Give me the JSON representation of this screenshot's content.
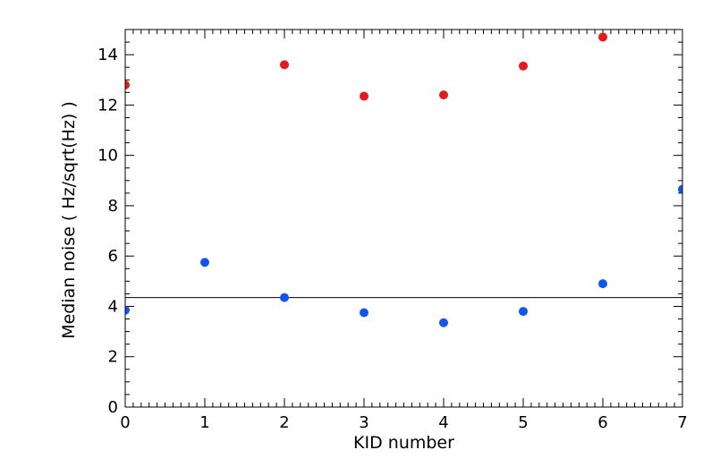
{
  "chart_data": {
    "type": "scatter",
    "title": "",
    "xlabel": "KID number",
    "ylabel": "Median noise ( Hz/sqrt(Hz) )",
    "xlim": [
      0,
      7
    ],
    "ylim": [
      0,
      15
    ],
    "x_ticks": [
      0,
      1,
      2,
      3,
      4,
      5,
      6,
      7
    ],
    "y_ticks": [
      0,
      2,
      4,
      6,
      8,
      10,
      12,
      14
    ],
    "grid": false,
    "legend": "none",
    "series": [
      {
        "color": "#e41a1c",
        "x": [
          0,
          2,
          3,
          4,
          5,
          6
        ],
        "y": [
          12.8,
          13.6,
          12.35,
          12.4,
          13.55,
          14.7
        ]
      },
      {
        "color": "#1155ee",
        "x": [
          0,
          1,
          2,
          3,
          4,
          5,
          6,
          7
        ],
        "y": [
          3.85,
          5.75,
          4.35,
          3.75,
          3.35,
          3.8,
          4.9,
          8.65
        ]
      }
    ],
    "hlines": [
      {
        "y": 4.35,
        "color": "#000000"
      }
    ]
  }
}
